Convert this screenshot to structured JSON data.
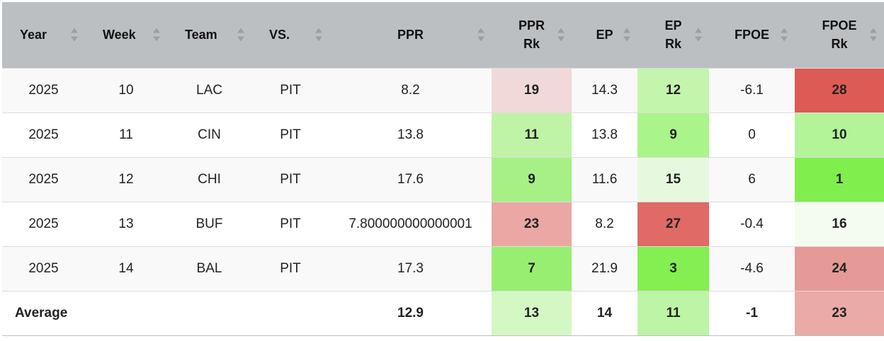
{
  "columns": [
    {
      "key": "year",
      "label_l1": "Year",
      "label_l2": ""
    },
    {
      "key": "week",
      "label_l1": "Week",
      "label_l2": ""
    },
    {
      "key": "team",
      "label_l1": "Team",
      "label_l2": ""
    },
    {
      "key": "vs",
      "label_l1": "VS.",
      "label_l2": ""
    },
    {
      "key": "ppr",
      "label_l1": "PPR",
      "label_l2": ""
    },
    {
      "key": "ppr_rk",
      "label_l1": "PPR",
      "label_l2": "Rk"
    },
    {
      "key": "ep",
      "label_l1": "EP",
      "label_l2": ""
    },
    {
      "key": "ep_rk",
      "label_l1": "EP",
      "label_l2": "Rk"
    },
    {
      "key": "fpoe",
      "label_l1": "FPOE",
      "label_l2": ""
    },
    {
      "key": "fpoe_rk",
      "label_l1": "FPOE",
      "label_l2": "Rk"
    }
  ],
  "rows": [
    {
      "year": "2025",
      "week": "10",
      "team": "LAC",
      "vs": "PIT",
      "ppr": "8.2",
      "ppr_rk": "19",
      "ep": "14.3",
      "ep_rk": "12",
      "fpoe": "-6.1",
      "fpoe_rk": "28",
      "colors": {
        "ppr_rk": "#f1d9d9",
        "ep_rk": "#c4f5ad",
        "fpoe_rk": "#de5a55"
      }
    },
    {
      "year": "2025",
      "week": "11",
      "team": "CIN",
      "vs": "PIT",
      "ppr": "13.8",
      "ppr_rk": "11",
      "ep": "13.8",
      "ep_rk": "9",
      "fpoe": "0",
      "fpoe_rk": "10",
      "colors": {
        "ppr_rk": "#bff4a7",
        "ep_rk": "#a9f589",
        "fpoe_rk": "#b2f497"
      }
    },
    {
      "year": "2025",
      "week": "12",
      "team": "CHI",
      "vs": "PIT",
      "ppr": "17.6",
      "ppr_rk": "9",
      "ep": "11.6",
      "ep_rk": "15",
      "fpoe": "6",
      "fpoe_rk": "1",
      "colors": {
        "ppr_rk": "#a6f086",
        "ep_rk": "#e6f8dd",
        "fpoe_rk": "#80ee4c"
      }
    },
    {
      "year": "2025",
      "week": "13",
      "team": "BUF",
      "vs": "PIT",
      "ppr": "7.800000000000001",
      "ppr_rk": "23",
      "ep": "8.2",
      "ep_rk": "27",
      "fpoe": "-0.4",
      "fpoe_rk": "16",
      "colors": {
        "ppr_rk": "#eaa7a4",
        "ep_rk": "#e06a66",
        "fpoe_rk": "#f3fcef"
      }
    },
    {
      "year": "2025",
      "week": "14",
      "team": "BAL",
      "vs": "PIT",
      "ppr": "17.3",
      "ppr_rk": "7",
      "ep": "21.9",
      "ep_rk": "3",
      "fpoe": "-4.6",
      "fpoe_rk": "24",
      "colors": {
        "ppr_rk": "#98ee71",
        "ep_rk": "#83ef50",
        "fpoe_rk": "#e59a97"
      }
    }
  ],
  "average": {
    "label": "Average",
    "ppr": "12.9",
    "ppr_rk": "13",
    "ep": "14",
    "ep_rk": "11",
    "fpoe": "-1",
    "fpoe_rk": "23",
    "colors": {
      "ppr_rk": "#d4f8c4",
      "ep_rk": "#bdf4a5",
      "fpoe_rk": "#eaaaa7"
    }
  }
}
